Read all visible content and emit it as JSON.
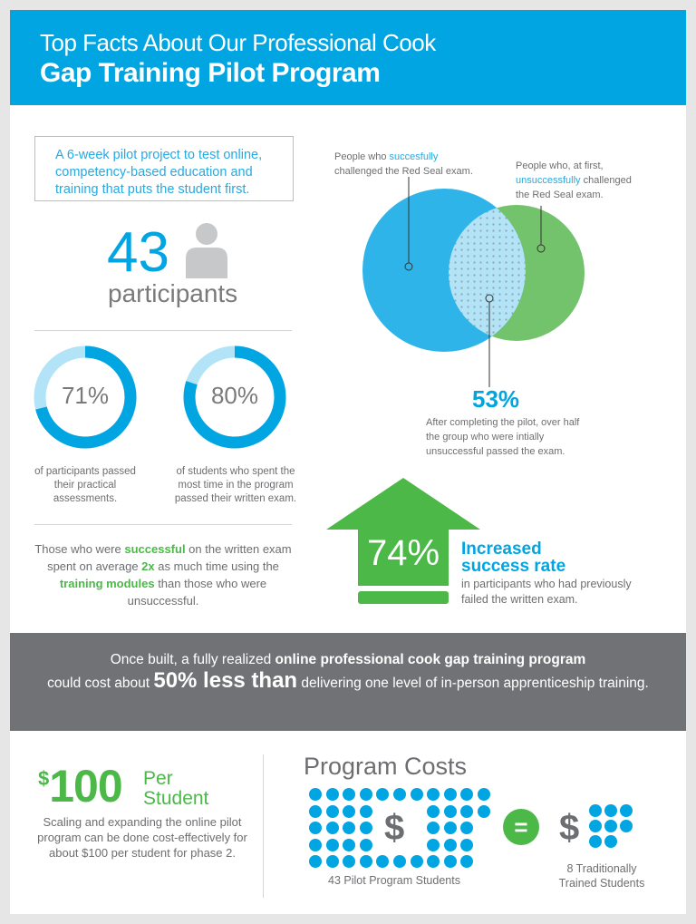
{
  "header": {
    "line1": "Top Facts About Our Professional Cook",
    "line2": "Gap Training Pilot Program",
    "color": "#00a5e2"
  },
  "intro": {
    "text": "A 6-week pilot project to test online, competency-based education and training that puts the student first."
  },
  "participants": {
    "count": "43",
    "label": "participants",
    "icon": "person-icon"
  },
  "donuts": [
    {
      "value": "71%",
      "percent": 71,
      "caption": "of participants passed their practical assessments."
    },
    {
      "value": "80%",
      "percent": 80,
      "caption": "of students who spent the most time in the program passed their written exam."
    }
  ],
  "venn": {
    "left_label_pre": "People who ",
    "left_label_hl": "succesfully",
    "left_label_post": "challenged the Red Seal exam.",
    "right_label_pre": "People who, at first,",
    "right_label_hl": "unsuccessfully",
    "right_label_mid": " challenged",
    "right_label_post": "the Red Seal exam.",
    "stat": "53%",
    "stat_text": "After completing the pilot, over half the group who were intially unsuccessful passed the exam.",
    "colors": {
      "blue": "#2fb4e9",
      "green": "#72c36b",
      "overlap": "#b3e3f7"
    }
  },
  "success_fact": {
    "p1": "Those who were ",
    "h1": "successful",
    "p2": " on the written exam spent on average ",
    "h2": "2x",
    "p3": " as much time using the ",
    "h3": "training modules",
    "p4": " than those who were unsuccessful."
  },
  "increase": {
    "value": "74%",
    "title_line1": "Increased",
    "title_line2": "success rate",
    "subtitle": "in participants who had previously failed the written exam.",
    "color": "#4cb848"
  },
  "band": {
    "p1": "Once built, a fully realized ",
    "b1": "online professional cook gap training program",
    "p2": "could cost about ",
    "big": "50% less than",
    "p3": " delivering one level of in-person apprenticeship training."
  },
  "per_student": {
    "symbol": "$",
    "amount": "100",
    "label_line1": "Per",
    "label_line2": "Student",
    "text": "Scaling and expanding the online pilot program can be done cost-effectively for about $100 per student for phase 2."
  },
  "program_costs": {
    "title": "Program Costs",
    "left_caption": "43 Pilot Program Students",
    "left_count": 43,
    "equals": "=",
    "right_caption_line1": "8 Traditionally",
    "right_caption_line2": "Trained Students",
    "right_count": 8,
    "dollar": "$"
  }
}
